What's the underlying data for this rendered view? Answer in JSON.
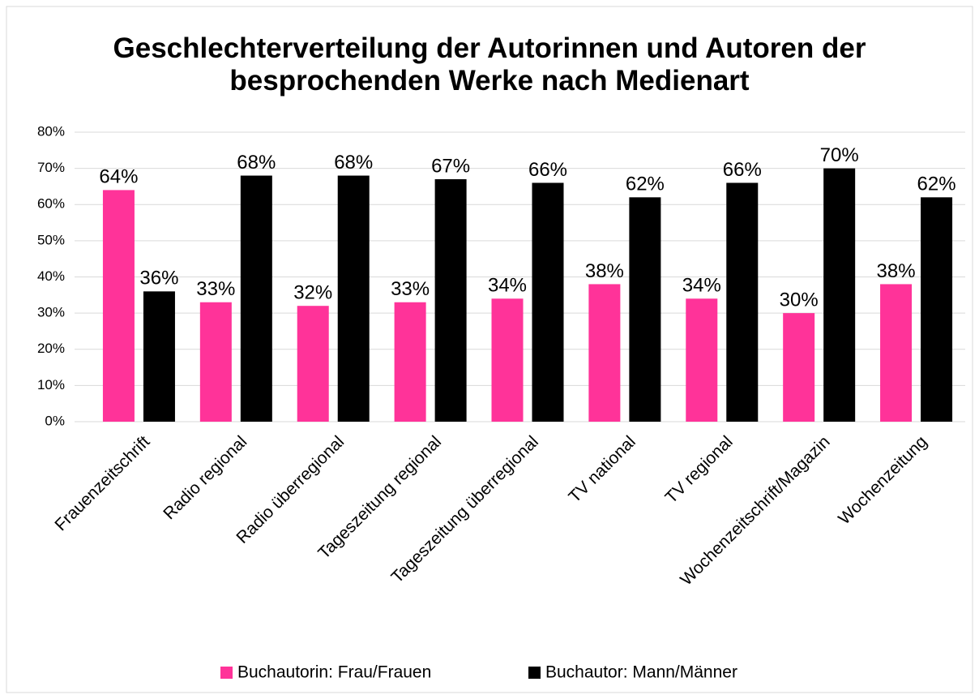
{
  "chart_data": {
    "type": "bar",
    "title": "Geschlechterverteilung der Autorinnen und Autoren der besprochenden Werke nach Medienart",
    "categories": [
      "Frauenzeitschrift",
      "Radio regional",
      "Radio überregional",
      "Tageszeitung regional",
      "Tageszeitung überregional",
      "TV national",
      "TV regional",
      "Wochenzeitschrift/Magazin",
      "Wochenzeitung"
    ],
    "series": [
      {
        "name": "Buchautorin: Frau/Frauen",
        "color": "#ff3399",
        "values": [
          64,
          33,
          32,
          33,
          34,
          38,
          34,
          30,
          38
        ],
        "value_labels": [
          "64%",
          "33%",
          "32%",
          "33%",
          "34%",
          "38%",
          "34%",
          "30%",
          "38%"
        ]
      },
      {
        "name": "Buchautor: Mann/Männer",
        "color": "#000000",
        "values": [
          36,
          68,
          68,
          67,
          66,
          62,
          66,
          70,
          62
        ],
        "value_labels": [
          "36%",
          "68%",
          "68%",
          "67%",
          "66%",
          "62%",
          "66%",
          "70%",
          "62%"
        ]
      }
    ],
    "ylim": [
      0,
      80
    ],
    "yticks": [
      {
        "value": 0,
        "label": "0%"
      },
      {
        "value": 10,
        "label": "10%"
      },
      {
        "value": 20,
        "label": "20%"
      },
      {
        "value": 30,
        "label": "30%"
      },
      {
        "value": 40,
        "label": "40%"
      },
      {
        "value": 50,
        "label": "50%"
      },
      {
        "value": 60,
        "label": "60%"
      },
      {
        "value": 70,
        "label": "70%"
      },
      {
        "value": 80,
        "label": "80%"
      }
    ],
    "grid": true,
    "legend": "bottom"
  }
}
